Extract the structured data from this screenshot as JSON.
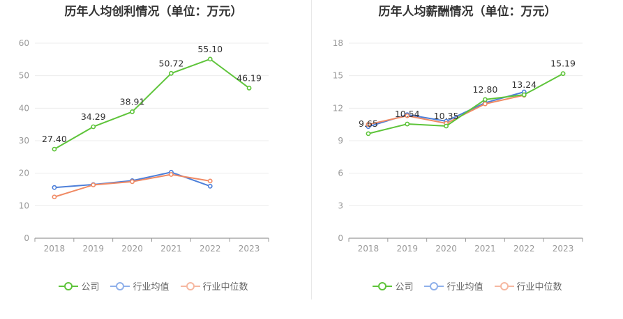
{
  "colors": {
    "company": "#5ec43a",
    "industry_avg": "#4d7fd9",
    "industry_median": "#f08a64"
  },
  "legend": {
    "company": "公司",
    "industry_avg": "行业均值",
    "industry_median": "行业中位数"
  },
  "chart_data": [
    {
      "type": "line",
      "title": "历年人均创利情况（单位：万元）",
      "categories": [
        "2018",
        "2019",
        "2020",
        "2021",
        "2022",
        "2023"
      ],
      "ylim": [
        0,
        60
      ],
      "yticks": [
        "0",
        "10",
        "20",
        "30",
        "40",
        "50",
        "60"
      ],
      "grid": true,
      "legend_position": "bottom",
      "series": [
        {
          "name": "公司",
          "key": "company",
          "values": [
            27.4,
            34.29,
            38.91,
            50.72,
            55.1,
            46.19
          ],
          "labels": [
            "27.40",
            "34.29",
            "38.91",
            "50.72",
            "55.10",
            "46.19"
          ]
        },
        {
          "name": "行业均值",
          "key": "industry_avg",
          "values": [
            15.6,
            16.5,
            17.7,
            20.3,
            16.0,
            null
          ]
        },
        {
          "name": "行业中位数",
          "key": "industry_median",
          "values": [
            12.7,
            16.4,
            17.4,
            19.6,
            17.6,
            null
          ]
        }
      ]
    },
    {
      "type": "line",
      "title": "历年人均薪酬情况（单位：万元）",
      "categories": [
        "2018",
        "2019",
        "2020",
        "2021",
        "2022",
        "2023"
      ],
      "ylim": [
        0,
        18
      ],
      "yticks": [
        "0",
        "3",
        "6",
        "9",
        "12",
        "15",
        "18"
      ],
      "grid": true,
      "legend_position": "bottom",
      "series": [
        {
          "name": "公司",
          "key": "company",
          "values": [
            9.65,
            10.54,
            10.35,
            12.8,
            13.24,
            15.19
          ],
          "labels": [
            "9.65",
            "10.54",
            "10.35",
            "12.80",
            "13.24",
            "15.19"
          ]
        },
        {
          "name": "行业均值",
          "key": "industry_avg",
          "values": [
            10.3,
            11.4,
            10.8,
            12.5,
            13.5,
            null
          ]
        },
        {
          "name": "行业中位数",
          "key": "industry_median",
          "values": [
            10.5,
            11.3,
            10.6,
            12.4,
            13.2,
            null
          ]
        }
      ]
    }
  ]
}
